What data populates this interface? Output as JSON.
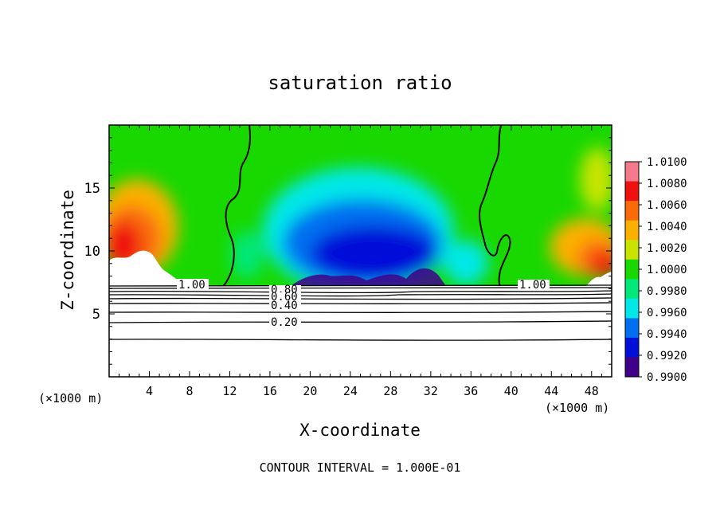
{
  "chart_data": {
    "type": "heatmap",
    "title": "saturation ratio",
    "xlabel": "X-coordinate",
    "ylabel": "Z-coordinate",
    "x_unit_label": "(×1000 m)",
    "footer": "CONTOUR INTERVAL = 1.000E-01",
    "xlim": [
      0,
      50
    ],
    "ylim": [
      0,
      20
    ],
    "x_ticks": [
      "4",
      "8",
      "12",
      "16",
      "20",
      "24",
      "28",
      "32",
      "36",
      "40",
      "44",
      "48"
    ],
    "y_ticks": [
      "5",
      "10",
      "15"
    ],
    "colorbar": {
      "labels": [
        "1.0100",
        "1.0080",
        "1.0060",
        "1.0040",
        "1.0020",
        "1.0000",
        "0.9980",
        "0.9960",
        "0.9940",
        "0.9920",
        "0.9900"
      ],
      "colors": [
        "#f47a8c",
        "#ef1010",
        "#f96a08",
        "#fbb000",
        "#c8e400",
        "#18d800",
        "#00e87a",
        "#00e8e8",
        "#0070f0",
        "#0010d8",
        "#40008a"
      ]
    },
    "contour_labels": [
      "1.00",
      "0.80",
      "0.60",
      "0.40",
      "0.20",
      "1.00"
    ],
    "lower_contour_levels": [
      0.2,
      0.3,
      0.4,
      0.5,
      0.6,
      0.7,
      0.8,
      0.9,
      1.0
    ],
    "colors": {
      "saturated_zone_color": "#ffffff"
    }
  }
}
